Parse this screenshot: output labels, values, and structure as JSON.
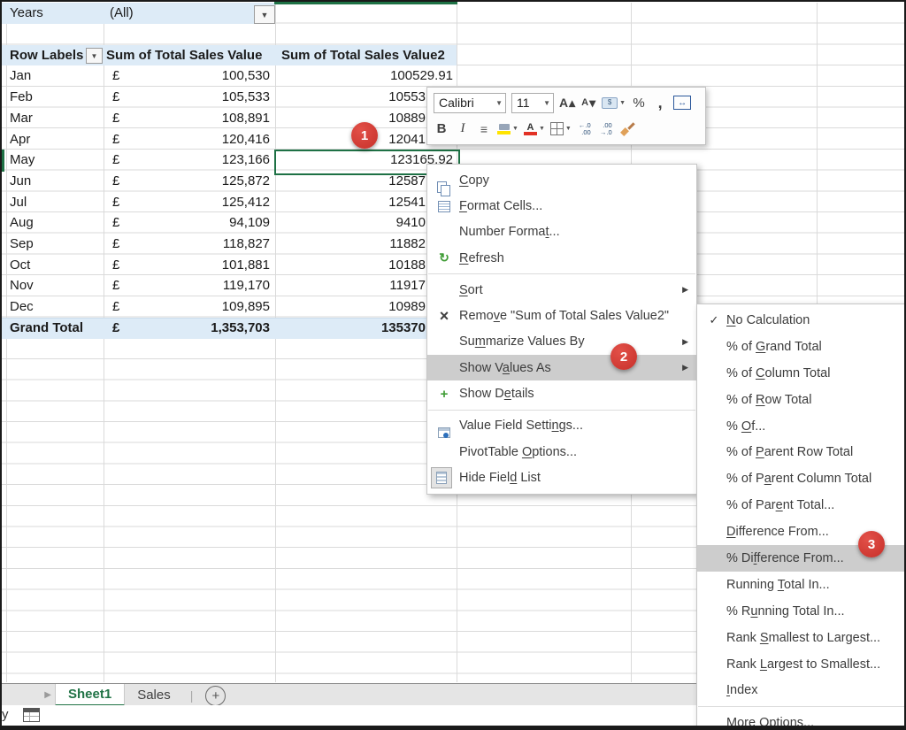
{
  "filter": {
    "label": "Years",
    "value": "(All)"
  },
  "pivot": {
    "headers": {
      "row_labels": "Row Labels",
      "value1": "Sum of Total Sales Value",
      "value2": "Sum of Total Sales Value2"
    },
    "rows": [
      {
        "month": "Jan",
        "currency": "£",
        "value1": "100,530",
        "value2": "100529.91",
        "value2_clipped": false
      },
      {
        "month": "Feb",
        "currency": "£",
        "value1": "105,533",
        "value2": "10553",
        "value2_clipped": true
      },
      {
        "month": "Mar",
        "currency": "£",
        "value1": "108,891",
        "value2": "10889",
        "value2_clipped": true
      },
      {
        "month": "Apr",
        "currency": "£",
        "value1": "120,416",
        "value2": "12041",
        "value2_clipped": true
      },
      {
        "month": "May",
        "currency": "£",
        "value1": "123,166",
        "value2": "123165.92",
        "value2_clipped": false,
        "selected": true
      },
      {
        "month": "Jun",
        "currency": "£",
        "value1": "125,872",
        "value2": "12587",
        "value2_clipped": true
      },
      {
        "month": "Jul",
        "currency": "£",
        "value1": "125,412",
        "value2": "12541",
        "value2_clipped": true
      },
      {
        "month": "Aug",
        "currency": "£",
        "value1": "94,109",
        "value2": "9410",
        "value2_clipped": true
      },
      {
        "month": "Sep",
        "currency": "£",
        "value1": "118,827",
        "value2": "11882",
        "value2_clipped": true
      },
      {
        "month": "Oct",
        "currency": "£",
        "value1": "101,881",
        "value2": "10188",
        "value2_clipped": true
      },
      {
        "month": "Nov",
        "currency": "£",
        "value1": "119,170",
        "value2": "11917",
        "value2_clipped": true
      },
      {
        "month": "Dec",
        "currency": "£",
        "value1": "109,895",
        "value2": "10989",
        "value2_clipped": true
      }
    ],
    "grand_total": {
      "month": "Grand Total",
      "currency": "£",
      "value1": "1,353,703",
      "value2": "135370",
      "value2_clipped": true
    }
  },
  "mini_toolbar": {
    "font_name": "Calibri",
    "font_size": "11"
  },
  "context_menu": {
    "items": [
      {
        "label": "Copy",
        "u": 0,
        "icon": "copy"
      },
      {
        "label": "Format Cells...",
        "u": 0,
        "icon": "format-cells"
      },
      {
        "label": "Number Format...",
        "u": 12
      },
      {
        "label": "Refresh",
        "u": 0,
        "icon": "refresh"
      },
      {
        "sep": true
      },
      {
        "label": "Sort",
        "u": 0,
        "arrow": true
      },
      {
        "label": "Remove \"Sum of Total Sales Value2\"",
        "u": 4,
        "icon": "remove"
      },
      {
        "label": "Summarize Values By",
        "u": 2,
        "arrow": true
      },
      {
        "label": "Show Values As",
        "u": 6,
        "arrow": true,
        "highlight": true
      },
      {
        "label": "Show Details",
        "u": 6,
        "icon": "show-details"
      },
      {
        "sep": true
      },
      {
        "label": "Value Field Settings...",
        "u": 17,
        "icon": "value-field-settings"
      },
      {
        "label": "PivotTable Options...",
        "u": 11
      },
      {
        "label": "Hide Field List",
        "u": 9,
        "icon": "hide-field-list"
      }
    ]
  },
  "submenu": {
    "items": [
      {
        "label": "No Calculation",
        "u": 0,
        "check": true
      },
      {
        "label": "% of Grand Total",
        "u": 5
      },
      {
        "label": "% of Column Total",
        "u": 5
      },
      {
        "label": "% of Row Total",
        "u": 5
      },
      {
        "label": "% Of...",
        "u": 2
      },
      {
        "label": "% of Parent Row Total",
        "u": 5
      },
      {
        "label": "% of Parent Column Total",
        "u": 6
      },
      {
        "label": "% of Parent Total...",
        "u": 8
      },
      {
        "label": "Difference From...",
        "u": 0
      },
      {
        "label": "% Difference From...",
        "u": 4,
        "highlight": true
      },
      {
        "label": "Running Total In...",
        "u": 8
      },
      {
        "label": "% Running Total In...",
        "u": 3
      },
      {
        "label": "Rank Smallest to Largest...",
        "u": 5
      },
      {
        "label": "Rank Largest to Smallest...",
        "u": 5
      },
      {
        "label": "Index",
        "u": 0
      },
      {
        "sep": true
      },
      {
        "label": "More Options...",
        "u": 0
      }
    ]
  },
  "annotations": [
    {
      "number": "1"
    },
    {
      "number": "2"
    },
    {
      "number": "3"
    }
  ],
  "sheet_tabs": {
    "tabs": [
      {
        "label": "Sheet1",
        "active": true
      },
      {
        "label": "Sales",
        "active": false
      }
    ]
  },
  "status_bar": {
    "partial_text": "y"
  },
  "icon_glyphs": {
    "dropdown": "▼",
    "submenu_arrow": "▶",
    "check": "✓",
    "refresh": "↻",
    "remove": "×",
    "show_details": "+",
    "tab_nav": "▶",
    "add_sheet": "+",
    "grow_letter": "A",
    "grow_arrow": "▴",
    "shrink_letter": "A",
    "shrink_arrow": "▾",
    "money": "$",
    "percent": "%",
    "comma": ",",
    "bold": "B",
    "italic": "I",
    "align": "≡",
    "merge": "↔",
    "font_color_letter": "A",
    "inc_top": "←.0",
    "inc_bot": ".00",
    "dec_top": ".00",
    "dec_bot": "→.0"
  },
  "colors": {
    "accent_green": "#217346",
    "header_fill": "#DDEBF7",
    "menu_highlight": "#CDCDCD",
    "annotation_red": "#C9352E"
  }
}
